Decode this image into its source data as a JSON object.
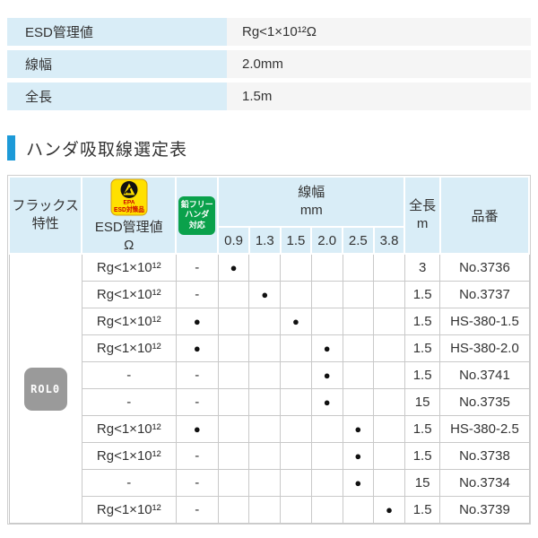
{
  "spec_table": {
    "rows": [
      {
        "label": "ESD管理値",
        "value": "Rg<1×10¹²Ω"
      },
      {
        "label": "線幅",
        "value": "2.0mm"
      },
      {
        "label": "全長",
        "value": "1.5m"
      }
    ]
  },
  "section": {
    "title": "ハンダ吸取線選定表"
  },
  "selection_table": {
    "header": {
      "flux": "フラックス\n特性",
      "esd_badge_epa": "EPA",
      "esd_badge_label": "ESD対策品",
      "esd_label": "ESD管理値",
      "esd_unit": "Ω",
      "leadfree_badge": "鉛フリー\nハンダ\n対応",
      "width_group": "線幅\nmm",
      "width_columns": [
        "0.9",
        "1.3",
        "1.5",
        "2.0",
        "2.5",
        "3.8"
      ],
      "length": "全長\nm",
      "part": "品番"
    },
    "flux_badge": "ROL0",
    "dot_symbol": "●",
    "dash_symbol": "-",
    "rows": [
      {
        "esd": "Rg<1×10¹²",
        "leadfree": false,
        "dot_col": 0,
        "length": "3",
        "part": "No.3736"
      },
      {
        "esd": "Rg<1×10¹²",
        "leadfree": false,
        "dot_col": 1,
        "length": "1.5",
        "part": "No.3737"
      },
      {
        "esd": "Rg<1×10¹²",
        "leadfree": true,
        "dot_col": 2,
        "length": "1.5",
        "part": "HS-380-1.5"
      },
      {
        "esd": "Rg<1×10¹²",
        "leadfree": true,
        "dot_col": 3,
        "length": "1.5",
        "part": "HS-380-2.0"
      },
      {
        "esd": "-",
        "leadfree": false,
        "dot_col": 3,
        "length": "1.5",
        "part": "No.3741"
      },
      {
        "esd": "-",
        "leadfree": false,
        "dot_col": 3,
        "length": "15",
        "part": "No.3735"
      },
      {
        "esd": "Rg<1×10¹²",
        "leadfree": true,
        "dot_col": 4,
        "length": "1.5",
        "part": "HS-380-2.5"
      },
      {
        "esd": "Rg<1×10¹²",
        "leadfree": false,
        "dot_col": 4,
        "length": "1.5",
        "part": "No.3738"
      },
      {
        "esd": "-",
        "leadfree": false,
        "dot_col": 4,
        "length": "15",
        "part": "No.3734"
      },
      {
        "esd": "Rg<1×10¹²",
        "leadfree": false,
        "dot_col": 5,
        "length": "1.5",
        "part": "No.3739"
      }
    ]
  },
  "colors": {
    "header_bg": "#d9edf7",
    "value_bg": "#f5f5f5",
    "accent_blue": "#1d9ad8",
    "badge_yellow": "#ffe000",
    "badge_red": "#cc0000",
    "badge_green": "#0aa14b",
    "badge_gray": "#9a9a9a",
    "grid_line": "#c9c9c9"
  }
}
